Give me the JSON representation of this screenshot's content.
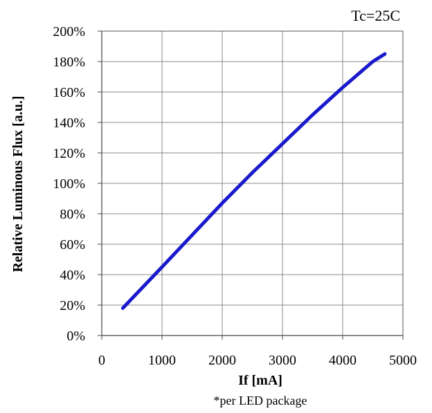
{
  "chart_data": {
    "type": "line",
    "annotation": "Tc=25C",
    "footnote": "*per LED package",
    "xlabel": "If [mA]",
    "ylabel": "Relative Luminous Flux [a.u.]",
    "xlim": [
      0,
      5000
    ],
    "ylim": [
      0,
      200
    ],
    "x_ticks": [
      0,
      1000,
      2000,
      3000,
      4000,
      5000
    ],
    "x_tick_labels": [
      "0",
      "1000",
      "2000",
      "3000",
      "4000",
      "5000"
    ],
    "y_ticks": [
      0,
      20,
      40,
      60,
      80,
      100,
      120,
      140,
      160,
      180,
      200
    ],
    "y_tick_labels": [
      "0%",
      "20%",
      "40%",
      "60%",
      "80%",
      "100%",
      "120%",
      "140%",
      "160%",
      "180%",
      "200%"
    ],
    "grid": true,
    "legend": "none",
    "series_color": "#1a1acc",
    "series": [
      {
        "x": [
          350,
          1000,
          1500,
          2000,
          2500,
          3000,
          3500,
          4000,
          4500,
          4700
        ],
        "values": [
          18,
          45,
          66,
          87,
          107,
          126,
          145,
          163,
          180,
          185
        ]
      }
    ]
  }
}
